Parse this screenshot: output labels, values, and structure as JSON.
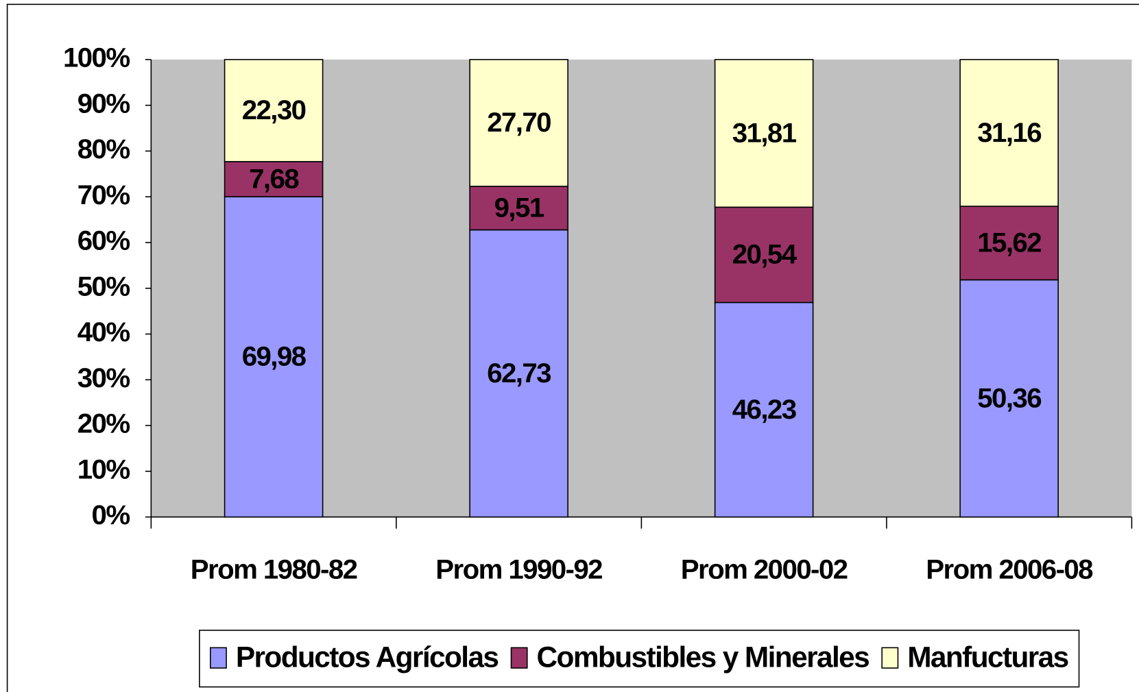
{
  "chart_data": {
    "type": "bar",
    "stacked": "percent",
    "categories": [
      "Prom 1980-82",
      "Prom 1990-92",
      "Prom 2000-02",
      "Prom 2006-08"
    ],
    "series": [
      {
        "name": "Productos Agrícolas",
        "color": "#9999ff",
        "values": [
          69.98,
          62.73,
          46.23,
          50.36
        ],
        "value_labels": [
          "69,98",
          "62,73",
          "46,23",
          "50,36"
        ]
      },
      {
        "name": "Combustibles y Minerales",
        "color": "#993366",
        "values": [
          7.68,
          9.51,
          20.54,
          15.62
        ],
        "value_labels": [
          "7,68",
          "9,51",
          "20,54",
          "15,62"
        ]
      },
      {
        "name": "Manfucturas",
        "color": "#ffffcc",
        "values": [
          22.3,
          27.7,
          31.81,
          31.16
        ],
        "value_labels": [
          "22,30",
          "27,70",
          "31,81",
          "31,16"
        ]
      }
    ],
    "ylim": [
      0,
      100
    ],
    "yticks": [
      {
        "value": 0,
        "label": "0%"
      },
      {
        "value": 10,
        "label": "10%"
      },
      {
        "value": 20,
        "label": "20%"
      },
      {
        "value": 30,
        "label": "30%"
      },
      {
        "value": 40,
        "label": "40%"
      },
      {
        "value": 50,
        "label": "50%"
      },
      {
        "value": 60,
        "label": "60%"
      },
      {
        "value": 70,
        "label": "70%"
      },
      {
        "value": 80,
        "label": "80%"
      },
      {
        "value": 90,
        "label": "90%"
      },
      {
        "value": 100,
        "label": "100%"
      }
    ],
    "plot_background": "#c0c0c0",
    "legend": "bottom"
  }
}
